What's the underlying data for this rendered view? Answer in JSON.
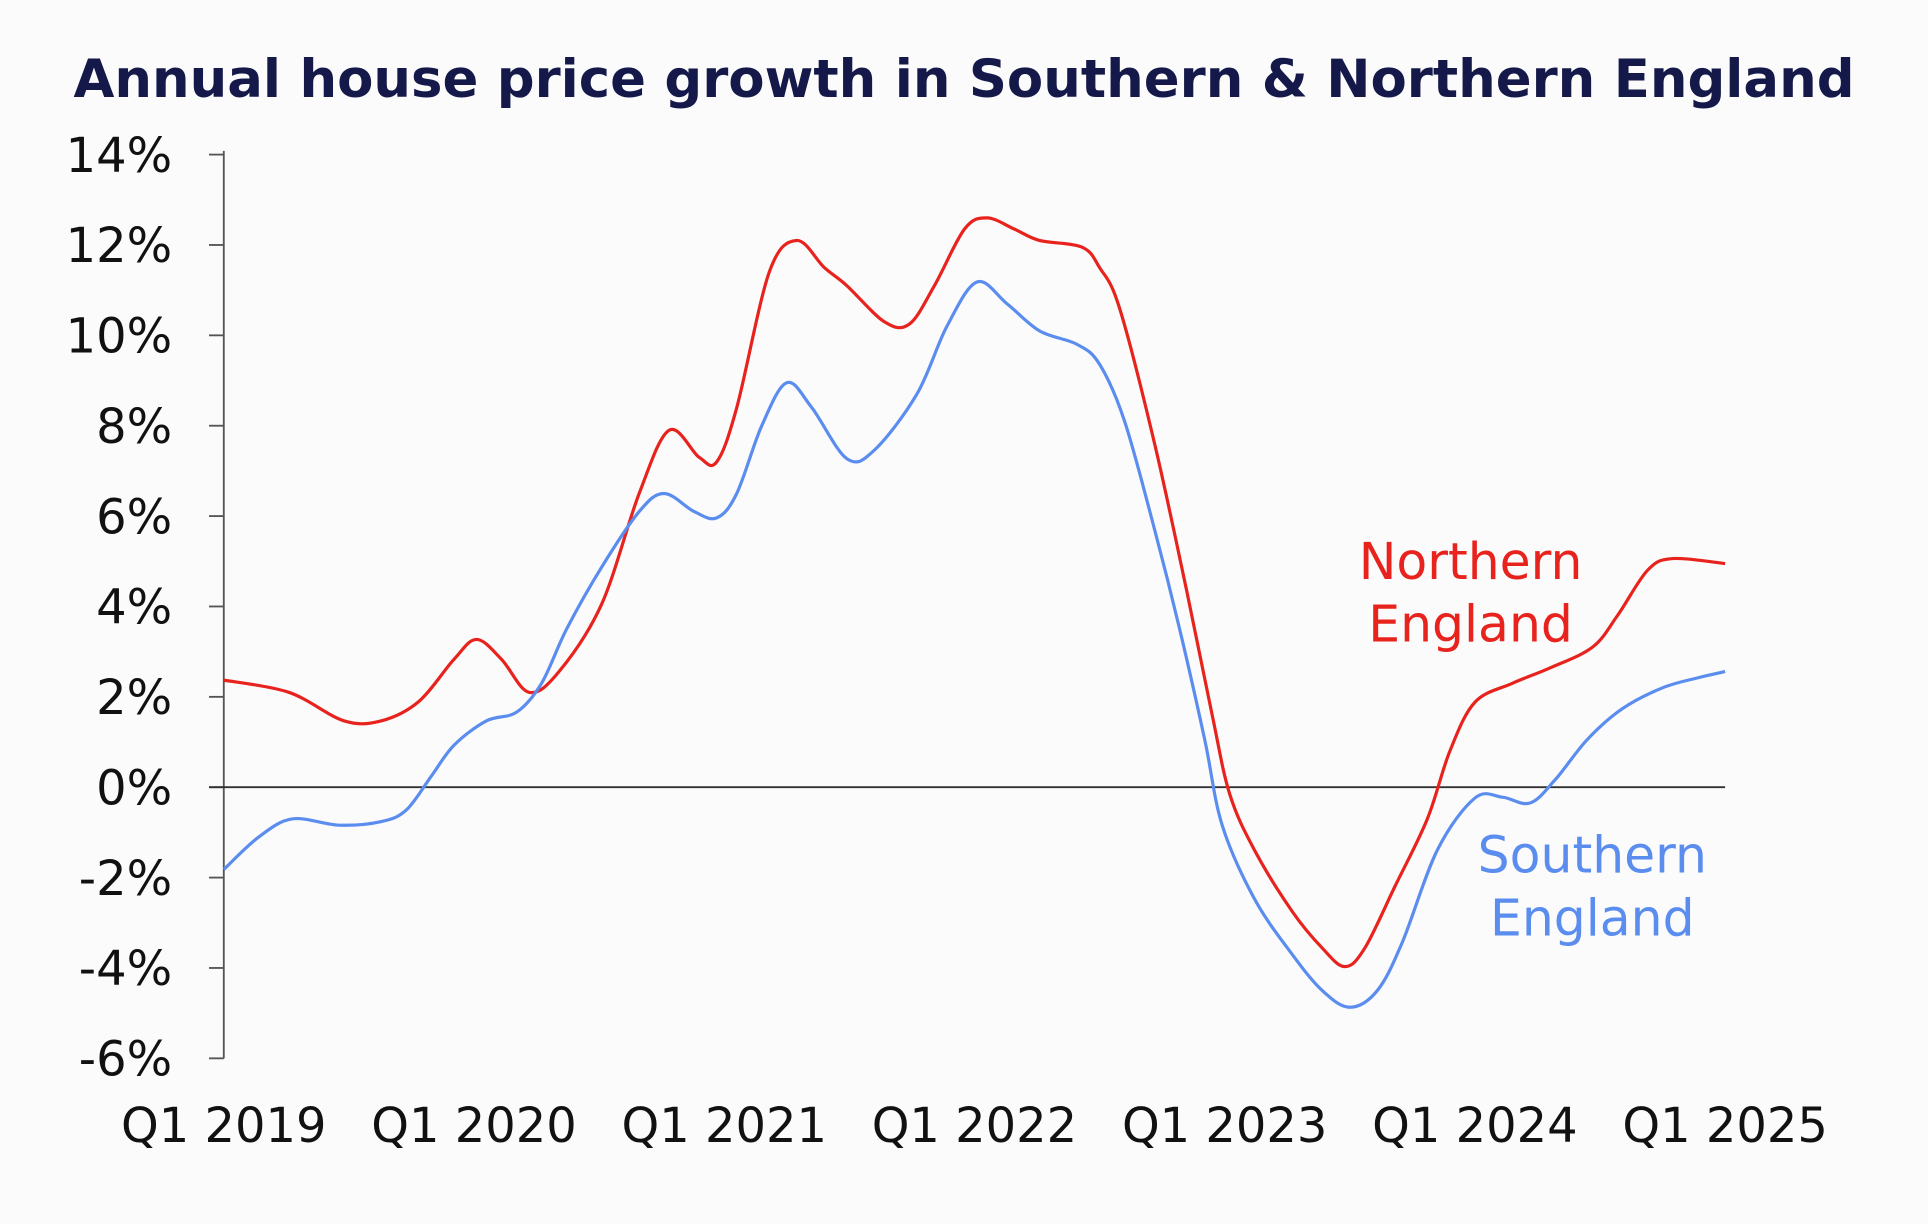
{
  "chart_data": {
    "type": "line",
    "title": "Annual house price growth in Southern & Northern England",
    "xlabel": "",
    "ylabel": "",
    "xlim": [
      2019.0,
      2025.0
    ],
    "ylim": [
      -6,
      14
    ],
    "x_ticks": [
      2019,
      2020,
      2021,
      2022,
      2023,
      2024,
      2025
    ],
    "x_tick_labels": [
      "Q1 2019",
      "Q1 2020",
      "Q1 2021",
      "Q1 2022",
      "Q1 2023",
      "Q1 2024",
      "Q1 2025"
    ],
    "y_ticks": [
      14,
      12,
      10,
      8,
      6,
      4,
      2,
      0,
      -2,
      -4,
      -6
    ],
    "y_tick_labels": [
      "14%",
      "12%",
      "10%",
      "8%",
      "6%",
      "4%",
      "2%",
      "0%",
      "-2%",
      "-4%",
      "-6%"
    ],
    "grid": false,
    "zero_line": true,
    "legend": "inline labels at right",
    "series": [
      {
        "name": "Northern England",
        "label_lines": [
          "Northern",
          "England"
        ],
        "color": "#e8231d",
        "x": [
          2019.0,
          2019.26,
          2019.48,
          2019.63,
          2019.78,
          2019.92,
          2020.01,
          2020.11,
          2020.22,
          2020.34,
          2020.51,
          2020.66,
          2020.78,
          2020.9,
          2020.97,
          2021.05,
          2021.18,
          2021.29,
          2021.4,
          2021.49,
          2021.64,
          2021.74,
          2021.84,
          2021.96,
          2022.05,
          2022.16,
          2022.26,
          2022.43,
          2022.5,
          2022.58,
          2022.72,
          2022.85,
          2022.95,
          2023.02,
          2023.12,
          2023.27,
          2023.39,
          2023.48,
          2023.56,
          2023.68,
          2023.81,
          2023.9,
          2024.0,
          2024.15,
          2024.3,
          2024.47,
          2024.57,
          2024.69,
          2024.79,
          2025.0
        ],
        "y": [
          2.37,
          2.1,
          1.47,
          1.47,
          1.9,
          2.83,
          3.27,
          2.83,
          2.1,
          2.56,
          4.05,
          6.5,
          7.9,
          7.3,
          7.2,
          8.4,
          11.4,
          12.1,
          11.5,
          11.1,
          10.3,
          10.25,
          11.1,
          12.35,
          12.6,
          12.35,
          12.1,
          11.95,
          11.5,
          10.6,
          7.6,
          4.3,
          1.6,
          -0.15,
          -1.4,
          -2.75,
          -3.56,
          -3.97,
          -3.56,
          -2.2,
          -0.7,
          0.8,
          1.88,
          2.3,
          2.64,
          3.1,
          3.8,
          4.8,
          5.06,
          4.95
        ]
      },
      {
        "name": "Southern England",
        "label_lines": [
          "Southern",
          "England"
        ],
        "color": "#5b8def",
        "x": [
          2019.0,
          2019.14,
          2019.275,
          2019.46,
          2019.63,
          2019.73,
          2019.83,
          2019.92,
          2020.05,
          2020.17,
          2020.27,
          2020.37,
          2020.51,
          2020.66,
          2020.76,
          2020.88,
          2020.97,
          2021.05,
          2021.15,
          2021.25,
          2021.35,
          2021.49,
          2021.6,
          2021.77,
          2021.89,
          2022.01,
          2022.13,
          2022.26,
          2022.41,
          2022.5,
          2022.6,
          2022.72,
          2022.82,
          2022.92,
          2022.99,
          2023.12,
          2023.27,
          2023.39,
          2023.5,
          2023.61,
          2023.71,
          2023.85,
          2024.0,
          2024.11,
          2024.22,
          2024.32,
          2024.45,
          2024.59,
          2024.75,
          2024.89,
          2025.0
        ],
        "y": [
          -1.82,
          -1.1,
          -0.7,
          -0.84,
          -0.76,
          -0.5,
          0.25,
          0.93,
          1.47,
          1.66,
          2.3,
          3.5,
          4.87,
          6.1,
          6.5,
          6.1,
          5.96,
          6.5,
          8.0,
          8.95,
          8.4,
          7.27,
          7.46,
          8.7,
          10.2,
          11.18,
          10.7,
          10.1,
          9.8,
          9.36,
          8.1,
          5.7,
          3.5,
          1.06,
          -0.84,
          -2.48,
          -3.7,
          -4.5,
          -4.87,
          -4.5,
          -3.43,
          -1.39,
          -0.24,
          -0.22,
          -0.35,
          0.16,
          1.06,
          1.74,
          2.2,
          2.42,
          2.56
        ]
      }
    ]
  }
}
